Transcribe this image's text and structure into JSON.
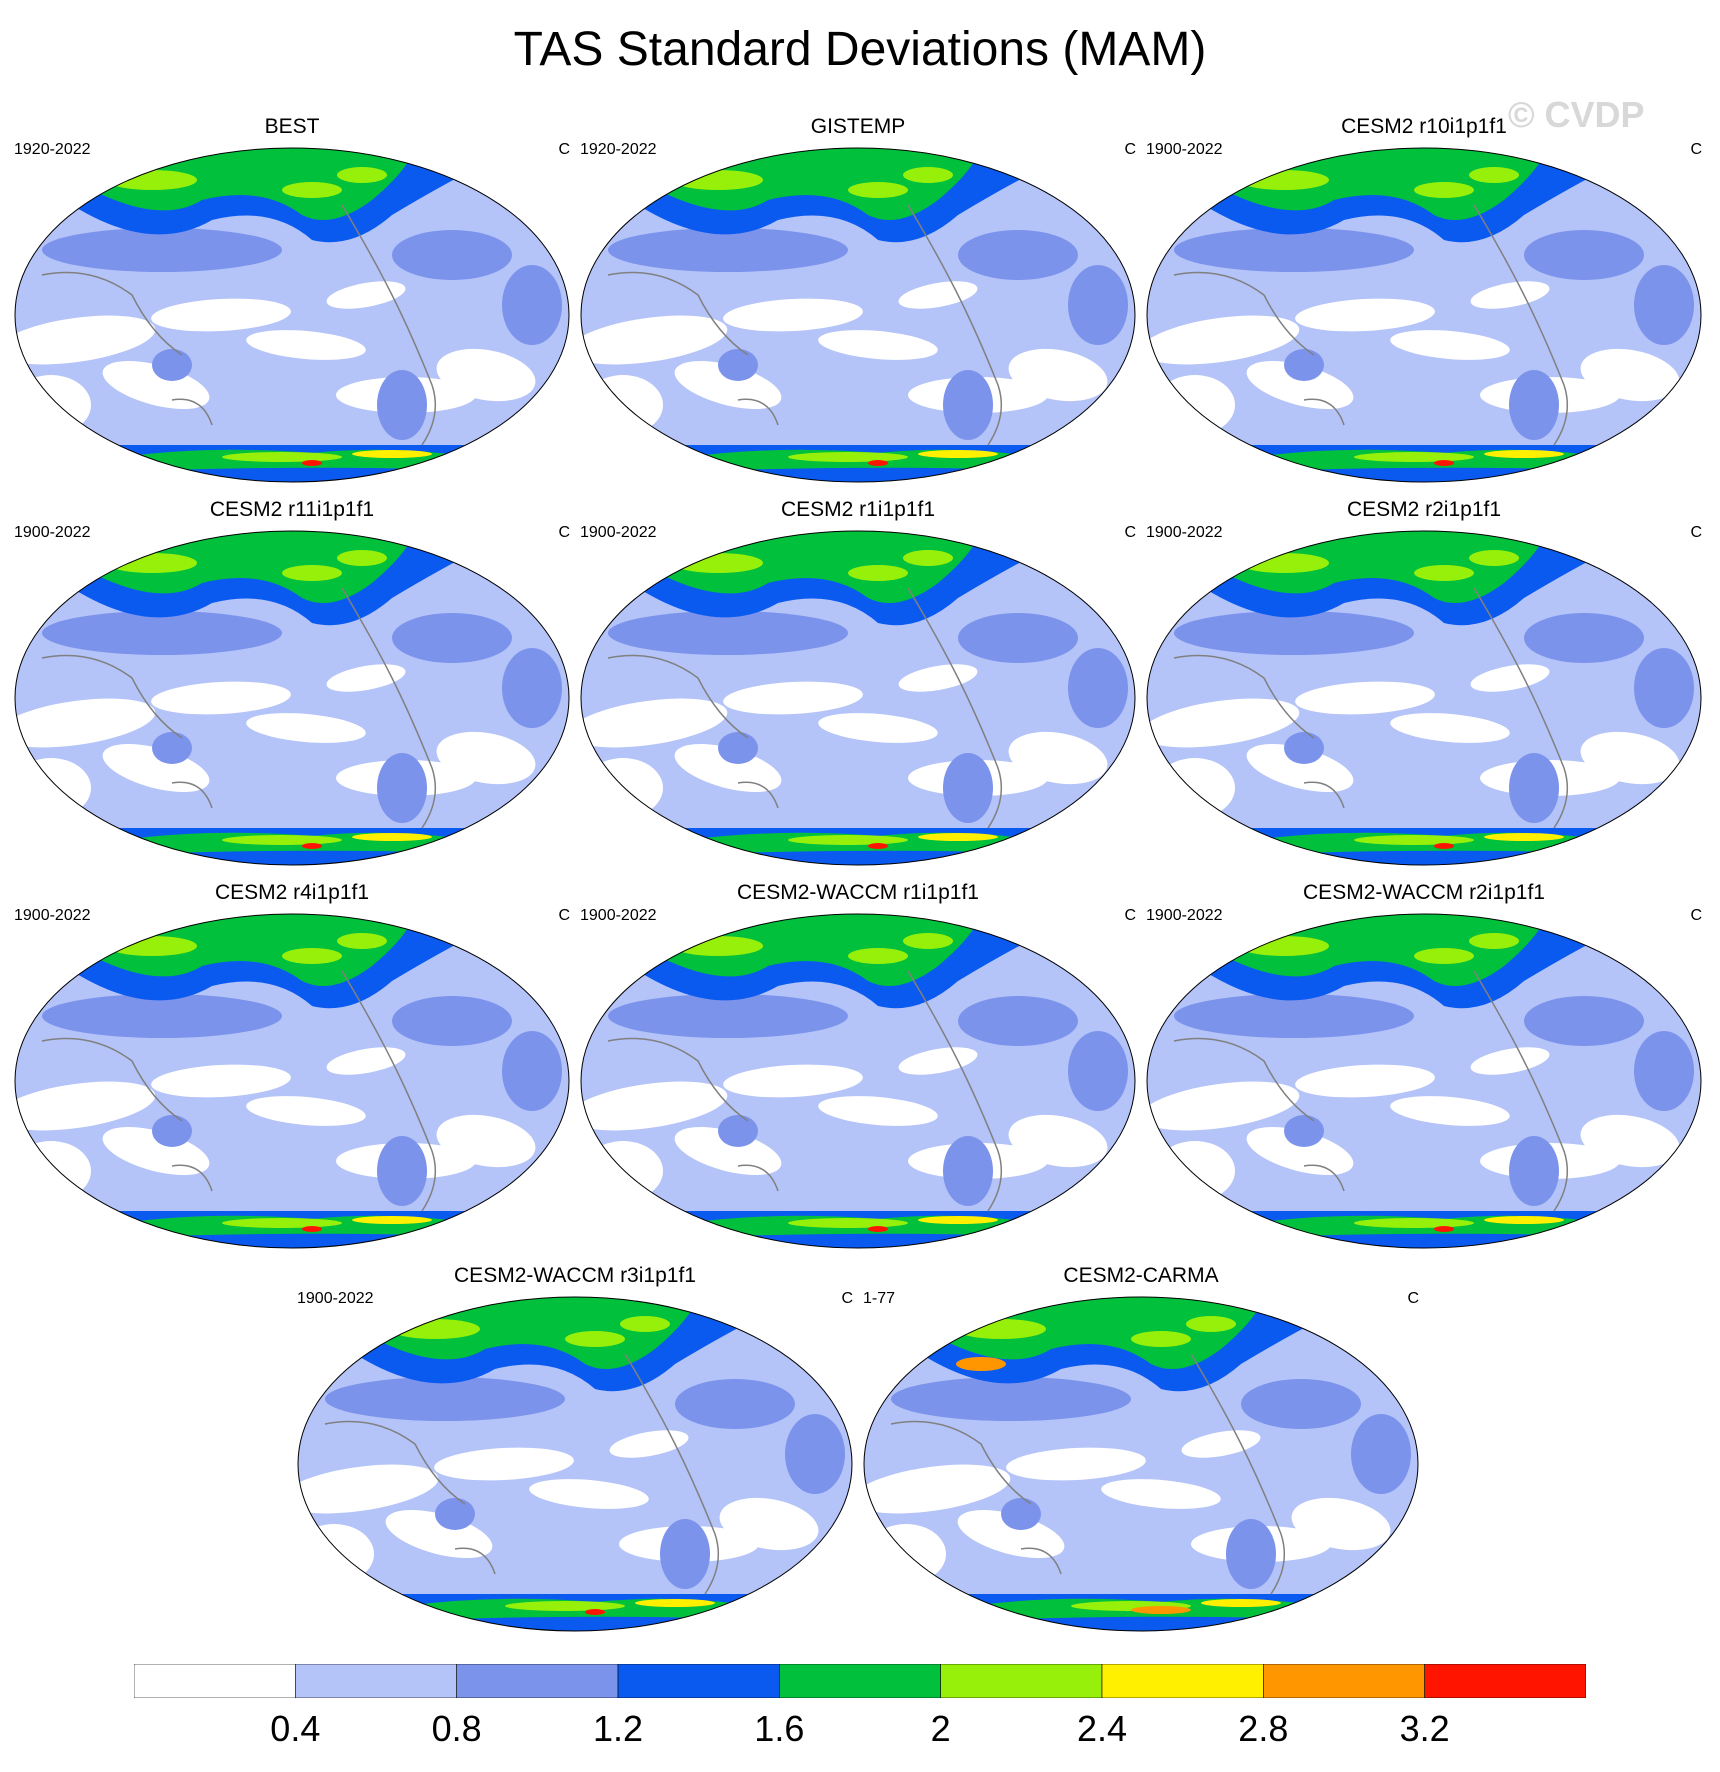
{
  "title": "TAS Standard Deviations (MAM)",
  "watermark": "© CVDP",
  "units": "C",
  "colorbar": {
    "labels": [
      "0.4",
      "0.8",
      "1.2",
      "1.6",
      "2",
      "2.4",
      "2.8",
      "3.2"
    ],
    "colors": [
      "#ffffff",
      "#b4c3f8",
      "#7c93ec",
      "#0a5af0",
      "#00c03c",
      "#96f00a",
      "#fff000",
      "#ff9600",
      "#ff1400"
    ]
  },
  "panels": [
    {
      "name": "BEST",
      "period": "1920-2022",
      "units": "C"
    },
    {
      "name": "GISTEMP",
      "period": "1920-2022",
      "units": "C"
    },
    {
      "name": "CESM2 r10i1p1f1",
      "period": "1900-2022",
      "units": "C"
    },
    {
      "name": "CESM2 r11i1p1f1",
      "period": "1900-2022",
      "units": "C"
    },
    {
      "name": "CESM2 r1i1p1f1",
      "period": "1900-2022",
      "units": "C"
    },
    {
      "name": "CESM2 r2i1p1f1",
      "period": "1900-2022",
      "units": "C"
    },
    {
      "name": "CESM2 r4i1p1f1",
      "period": "1900-2022",
      "units": "C"
    },
    {
      "name": "CESM2-WACCM r1i1p1f1",
      "period": "1900-2022",
      "units": "C"
    },
    {
      "name": "CESM2-WACCM r2i1p1f1",
      "period": "1900-2022",
      "units": "C"
    },
    {
      "name": "CESM2-WACCM r3i1p1f1",
      "period": "1900-2022",
      "units": "C"
    },
    {
      "name": "CESM2-CARMA",
      "period": "1-77",
      "units": "C"
    }
  ]
}
